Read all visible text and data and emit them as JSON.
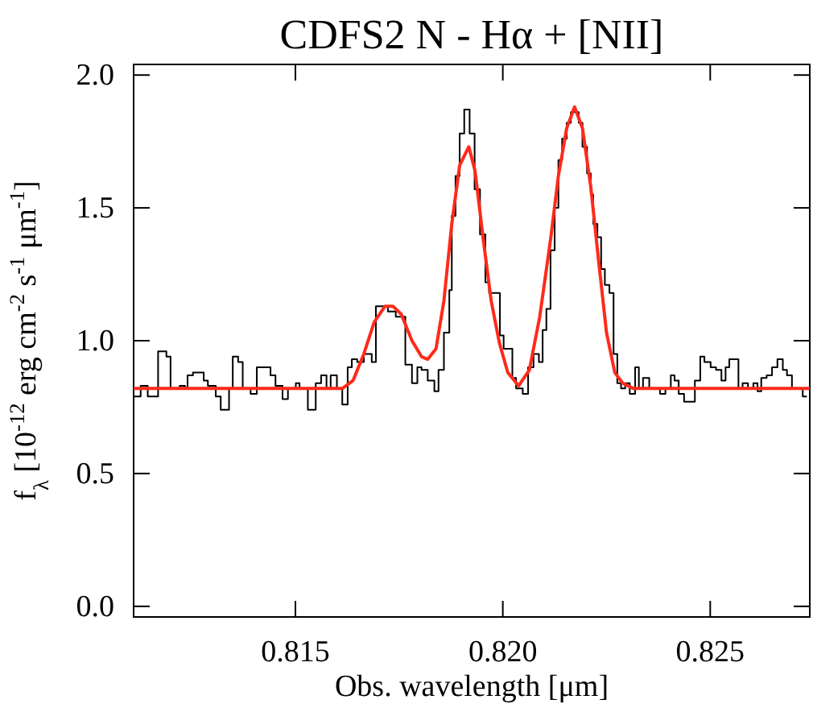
{
  "chart_data": {
    "type": "step",
    "title": "CDFS2 N - Hα + [NII]",
    "xlabel": "Obs. wavelength [μm]",
    "ylabel": "f$_{λ}$ [10$^{-12}$ erg cm$^{-2}$ s$^{-1}$ μm$^{-1}$]",
    "xlim": [
      0.8111,
      0.8274
    ],
    "ylim": [
      -0.04,
      2.04
    ],
    "xticks": [
      {
        "value": 0.815,
        "label": "0.815"
      },
      {
        "value": 0.82,
        "label": "0.820"
      },
      {
        "value": 0.825,
        "label": "0.825"
      }
    ],
    "yticks": [
      {
        "value": 0,
        "label": "0.0"
      },
      {
        "value": 0.5,
        "label": "0.5"
      },
      {
        "value": 1,
        "label": "1.0"
      },
      {
        "value": 1.5,
        "label": "1.5"
      },
      {
        "value": 2,
        "label": "2.0"
      }
    ],
    "grid": false,
    "series": [
      {
        "color": "#000000",
        "x": [
          0.8111,
          0.81127,
          0.81144,
          0.81169,
          0.81189,
          0.81199,
          0.81221,
          0.81234,
          0.8124,
          0.81253,
          0.81279,
          0.81289,
          0.81308,
          0.8132,
          0.8134,
          0.81349,
          0.81362,
          0.81373,
          0.81392,
          0.81407,
          0.81427,
          0.8144,
          0.81452,
          0.81469,
          0.81482,
          0.81501,
          0.8151,
          0.8153,
          0.81549,
          0.81562,
          0.81575,
          0.81585,
          0.816,
          0.81613,
          0.81626,
          0.81636,
          0.81649,
          0.81665,
          0.81684,
          0.81694,
          0.81723,
          0.81742,
          0.81765,
          0.81781,
          0.81794,
          0.81804,
          0.81819,
          0.81835,
          0.81845,
          0.81858,
          0.81871,
          0.81877,
          0.81886,
          0.81896,
          0.81907,
          0.8192,
          0.81932,
          0.81945,
          0.81958,
          0.81967,
          0.81993,
          0.82002,
          0.82023,
          0.82032,
          0.82048,
          0.82061,
          0.82074,
          0.82087,
          0.82096,
          0.82105,
          0.82115,
          0.82125,
          0.82134,
          0.82143,
          0.82154,
          0.82164,
          0.82183,
          0.82192,
          0.82203,
          0.82212,
          0.82218,
          0.82228,
          0.82237,
          0.82246,
          0.82257,
          0.82267,
          0.82276,
          0.82285,
          0.82295,
          0.82306,
          0.82319,
          0.82328,
          0.82338,
          0.82353,
          0.82379,
          0.82392,
          0.82405,
          0.82414,
          0.82424,
          0.82437,
          0.82463,
          0.82476,
          0.82486,
          0.82501,
          0.82514,
          0.82527,
          0.82537,
          0.82546,
          0.82568,
          0.82578,
          0.82591,
          0.82604,
          0.82614,
          0.82623,
          0.82636,
          0.82649,
          0.82662,
          0.82675,
          0.82685,
          0.82697,
          0.82723,
          0.82733
        ],
        "values": [
          0.79,
          0.83,
          0.79,
          0.96,
          0.94,
          0.82,
          0.83,
          0.82,
          0.87,
          0.88,
          0.85,
          0.83,
          0.79,
          0.74,
          0.82,
          0.94,
          0.92,
          0.82,
          0.8,
          0.9,
          0.9,
          0.87,
          0.83,
          0.78,
          0.82,
          0.84,
          0.82,
          0.74,
          0.84,
          0.87,
          0.82,
          0.87,
          0.82,
          0.76,
          0.9,
          0.93,
          0.92,
          0.95,
          0.92,
          1.13,
          1.11,
          1.09,
          0.91,
          0.84,
          0.9,
          0.89,
          0.85,
          0.81,
          0.89,
          1.03,
          1.19,
          1.47,
          1.62,
          1.78,
          1.87,
          1.78,
          1.57,
          1.4,
          1.22,
          1.18,
          1.02,
          0.97,
          0.86,
          0.82,
          0.8,
          0.9,
          0.95,
          0.92,
          1.04,
          1.12,
          1.34,
          1.5,
          1.68,
          1.76,
          1.82,
          1.86,
          1.82,
          1.73,
          1.63,
          1.55,
          1.44,
          1.39,
          1.27,
          1.21,
          1.18,
          0.95,
          0.84,
          0.82,
          0.84,
          0.8,
          0.9,
          0.82,
          0.86,
          0.82,
          0.8,
          0.82,
          0.87,
          0.85,
          0.8,
          0.77,
          0.85,
          0.94,
          0.92,
          0.9,
          0.89,
          0.85,
          0.9,
          0.93,
          0.82,
          0.84,
          0.82,
          0.84,
          0.81,
          0.86,
          0.87,
          0.9,
          0.93,
          0.89,
          0.87,
          0.82,
          0.79,
          0.79
        ]
      },
      {
        "type": "line",
        "color": "#ff2a1a",
        "x": [
          0.8111,
          0.81613,
          0.81639,
          0.81665,
          0.8169,
          0.81716,
          0.81735,
          0.81755,
          0.81781,
          0.81804,
          0.81819,
          0.81839,
          0.81858,
          0.81877,
          0.81896,
          0.81918,
          0.81933,
          0.81953,
          0.81972,
          0.81992,
          0.82012,
          0.82038,
          0.82064,
          0.82089,
          0.82115,
          0.82134,
          0.82154,
          0.82173,
          0.82192,
          0.82212,
          0.82231,
          0.8225,
          0.8227,
          0.82289,
          0.82315,
          0.8274
        ],
        "values": [
          0.82,
          0.82,
          0.85,
          0.95,
          1.07,
          1.13,
          1.13,
          1.1,
          1.0,
          0.94,
          0.93,
          0.97,
          1.15,
          1.44,
          1.66,
          1.73,
          1.64,
          1.38,
          1.15,
          0.99,
          0.88,
          0.83,
          0.89,
          1.09,
          1.38,
          1.62,
          1.8,
          1.88,
          1.8,
          1.58,
          1.3,
          1.03,
          0.88,
          0.84,
          0.82,
          0.82
        ]
      }
    ]
  }
}
